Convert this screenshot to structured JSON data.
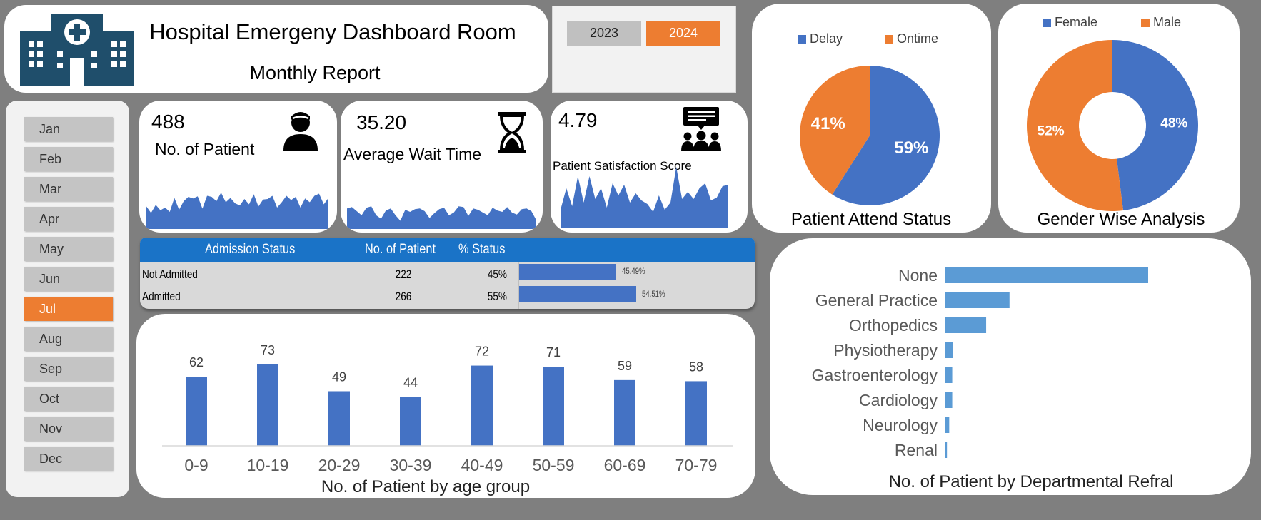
{
  "header": {
    "title": "Hospital Emergeny Dashboard Room",
    "subtitle": "Monthly Report",
    "logo_icon": "hospital-building-icon"
  },
  "years": [
    {
      "label": "2023",
      "selected": false
    },
    {
      "label": "2024",
      "selected": true
    }
  ],
  "months": [
    {
      "label": "Jan",
      "selected": false
    },
    {
      "label": "Feb",
      "selected": false
    },
    {
      "label": "Mar",
      "selected": false
    },
    {
      "label": "Apr",
      "selected": false
    },
    {
      "label": "May",
      "selected": false
    },
    {
      "label": "Jun",
      "selected": false
    },
    {
      "label": "Jul",
      "selected": true
    },
    {
      "label": "Aug",
      "selected": false
    },
    {
      "label": "Sep",
      "selected": false
    },
    {
      "label": "Oct",
      "selected": false
    },
    {
      "label": "Nov",
      "selected": false
    },
    {
      "label": "Dec",
      "selected": false
    }
  ],
  "kpis": {
    "patients": {
      "value": "488",
      "label": "No. of Patient",
      "icon": "patient-icon"
    },
    "wait": {
      "value": "35.20",
      "label": "Average Wait Time",
      "icon": "hourglass-icon"
    },
    "satisfaction": {
      "value": "4.79",
      "label": "Patient Satisfaction Score",
      "icon": "feedback-group-icon"
    }
  },
  "admission": {
    "headers": [
      "Admission Status",
      "No. of Patient",
      "% Status"
    ],
    "rows": [
      {
        "status": "Not Admitted",
        "count": "222",
        "pct": "45%",
        "bar_label": "45.49%",
        "fraction": 0.4549
      },
      {
        "status": "Admitted",
        "count": "266",
        "pct": "55%",
        "bar_label": "54.51%",
        "fraction": 0.5451
      }
    ]
  },
  "colors": {
    "blue": "#4472c4",
    "orange": "#ed7d31",
    "light_blue": "#5b9bd5",
    "header_blue": "#1a73c7"
  },
  "chart_data": [
    {
      "type": "pie",
      "title": "Patient Attend Status",
      "legend": [
        "Delay",
        "Ontime"
      ],
      "legend_position": "top",
      "slices": [
        {
          "name": "Delay",
          "value": 59,
          "label": "59%"
        },
        {
          "name": "Ontime",
          "value": 41,
          "label": "41%"
        }
      ]
    },
    {
      "type": "pie",
      "title": "Gender Wise Analysis",
      "donut": true,
      "legend": [
        "Female",
        "Male"
      ],
      "legend_position": "top",
      "slices": [
        {
          "name": "Female",
          "value": 48,
          "label": "48%"
        },
        {
          "name": "Male",
          "value": 52,
          "label": "52%"
        }
      ]
    },
    {
      "type": "bar",
      "title": "No. of Patient by age group",
      "categories": [
        "0-9",
        "10-19",
        "20-29",
        "30-39",
        "40-49",
        "50-59",
        "60-69",
        "70-79"
      ],
      "values": [
        62,
        73,
        49,
        44,
        72,
        71,
        59,
        58
      ],
      "ylim": [
        0,
        80
      ]
    },
    {
      "type": "bar",
      "orientation": "horizontal",
      "title": "No. of Patient by Departmental Refral",
      "categories": [
        "None",
        "General Practice",
        "Orthopedics",
        "Physiotherapy",
        "Gastroenterology",
        "Cardiology",
        "Neurology",
        "Renal"
      ],
      "values": [
        270,
        86,
        55,
        11,
        10,
        10,
        6,
        3
      ],
      "xlim": [
        0,
        300
      ]
    },
    {
      "type": "area",
      "values": [
        42,
        30,
        45,
        35,
        40,
        32,
        58,
        36,
        52,
        60,
        57,
        61,
        38,
        62,
        60,
        52,
        68,
        50,
        58,
        48,
        44,
        56,
        46,
        65,
        42,
        55,
        56,
        62,
        40,
        50,
        62,
        54,
        60,
        40,
        57,
        50,
        62,
        66,
        46,
        58
      ],
      "ylim": [
        0,
        100
      ]
    },
    {
      "type": "area",
      "values": [
        30,
        32,
        26,
        20,
        31,
        33,
        20,
        15,
        27,
        30,
        20,
        12,
        28,
        25,
        29,
        30,
        26,
        16,
        23,
        29,
        31,
        20,
        24,
        33,
        32,
        19,
        30,
        28,
        24,
        20,
        31,
        27,
        25,
        32,
        24,
        21,
        29,
        30,
        26,
        13
      ],
      "ylim": [
        0,
        100
      ]
    },
    {
      "type": "area",
      "values": [
        25,
        55,
        30,
        72,
        35,
        72,
        40,
        55,
        28,
        62,
        45,
        60,
        35,
        48,
        38,
        33,
        22,
        45,
        25,
        35,
        85,
        40,
        50,
        40,
        55,
        62,
        38,
        42,
        58,
        60
      ],
      "ylim": [
        0,
        100
      ]
    }
  ]
}
